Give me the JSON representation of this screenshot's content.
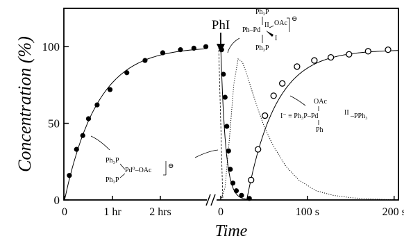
{
  "chart_data": {
    "type": "scatter",
    "xlabel": "Time",
    "ylabel": "Concentration (%)",
    "ylim": [
      0,
      125
    ],
    "y_ticks": [
      0,
      50,
      100
    ],
    "grid": false,
    "left_panel": {
      "xlim_hours": [
        0,
        3.0
      ],
      "x_ticks": [
        {
          "value": 0,
          "label": "0"
        },
        {
          "value": 1,
          "label": "1 hr"
        },
        {
          "value": 2,
          "label": "2 hrs"
        }
      ]
    },
    "right_panel": {
      "xlim_seconds": [
        0,
        205
      ],
      "x_ticks": [
        {
          "value": 0,
          "label": "0"
        },
        {
          "value": 100,
          "label": "100 s"
        },
        {
          "value": 200,
          "label": "200 s"
        }
      ]
    },
    "annotation": {
      "label": "PhI",
      "x_seconds": 0
    },
    "series": [
      {
        "marker": "filled-circle",
        "panel": "left",
        "x_hours": [
          0.1,
          0.25,
          0.38,
          0.5,
          0.68,
          0.95,
          1.3,
          1.68,
          2.05,
          2.42,
          2.7,
          2.95
        ],
        "y": [
          16,
          33,
          42,
          53,
          62,
          72,
          83,
          91,
          96,
          98,
          99,
          100
        ]
      },
      {
        "marker": "filled-circle",
        "panel": "right",
        "x_seconds": [
          1,
          3,
          5,
          7,
          9,
          11,
          14,
          18,
          24,
          33
        ],
        "y": [
          98,
          82,
          67,
          48,
          32,
          20,
          11,
          6,
          3,
          1
        ]
      },
      {
        "marker": "open-circle",
        "panel": "right",
        "x_seconds": [
          35,
          43,
          51,
          61,
          71,
          88,
          108,
          127,
          148,
          170,
          193
        ],
        "y": [
          13,
          33,
          55,
          68,
          76,
          87,
          91,
          93,
          95,
          97,
          98
        ]
      },
      {
        "line": "dotted",
        "panel": "right",
        "x_seconds": [
          0,
          5,
          10,
          15,
          20,
          25,
          30,
          40,
          50,
          60,
          75,
          90,
          110,
          130,
          150,
          170,
          190,
          205
        ],
        "y": [
          0,
          8,
          40,
          75,
          92,
          90,
          82,
          64,
          48,
          36,
          22,
          13,
          6,
          3,
          1.5,
          0.7,
          0.3,
          0.1
        ]
      }
    ],
    "structures": {
      "pd0": {
        "line1": "Ph₃P",
        "line2": "Pd⁰–OAc",
        "line3": "Ph₃P",
        "charge": "⊖"
      },
      "pdii_anion": {
        "top": "Ph₃P",
        "mid": "Ph–Pd",
        "ox": "II",
        "oac": "OAc",
        "iodide": "I",
        "bottom": "Ph₃P",
        "charge": "⊖"
      },
      "pdii_neutral": {
        "top": "OAc",
        "main": "I⁻ ≡ Ph₃P–Pd",
        "ox": "II",
        "tail": "–PPh₃",
        "bottom": "Ph"
      }
    }
  }
}
